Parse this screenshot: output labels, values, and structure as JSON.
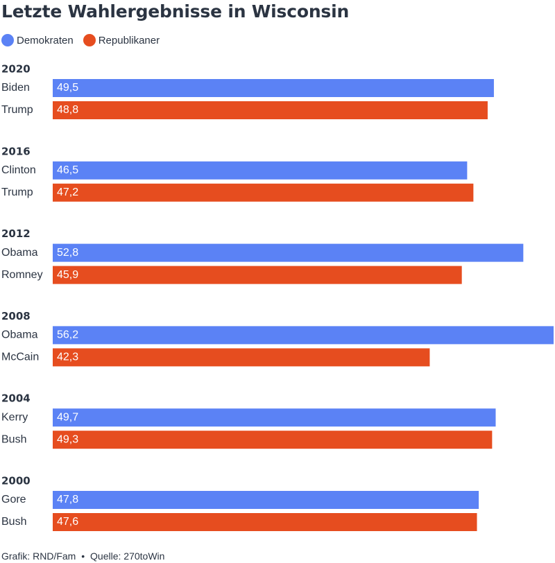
{
  "title": "Letzte Wahlergebnisse in Wisconsin",
  "legend": [
    {
      "label": "Demokraten",
      "color": "#5b82f5"
    },
    {
      "label": "Republikaner",
      "color": "#e64d1f"
    }
  ],
  "footer": {
    "credit": "Grafik: RND/Fam",
    "separator": "•",
    "source": "Quelle: 270toWin"
  },
  "chart_data": {
    "type": "bar",
    "orientation": "horizontal",
    "title": "Letzte Wahlergebnisse in Wisconsin",
    "xlim": [
      0,
      56.2
    ],
    "grid": false,
    "legend_position": "top-left",
    "series_colors": {
      "Demokraten": "#5b82f5",
      "Republikaner": "#e64d1f"
    },
    "groups": [
      {
        "year": "2020",
        "bars": [
          {
            "candidate": "Biden",
            "party": "Demokraten",
            "value": 49.5,
            "label": "49,5"
          },
          {
            "candidate": "Trump",
            "party": "Republikaner",
            "value": 48.8,
            "label": "48,8"
          }
        ]
      },
      {
        "year": "2016",
        "bars": [
          {
            "candidate": "Clinton",
            "party": "Demokraten",
            "value": 46.5,
            "label": "46,5"
          },
          {
            "candidate": "Trump",
            "party": "Republikaner",
            "value": 47.2,
            "label": "47,2"
          }
        ]
      },
      {
        "year": "2012",
        "bars": [
          {
            "candidate": "Obama",
            "party": "Demokraten",
            "value": 52.8,
            "label": "52,8"
          },
          {
            "candidate": "Romney",
            "party": "Republikaner",
            "value": 45.9,
            "label": "45,9"
          }
        ]
      },
      {
        "year": "2008",
        "bars": [
          {
            "candidate": "Obama",
            "party": "Demokraten",
            "value": 56.2,
            "label": "56,2"
          },
          {
            "candidate": "McCain",
            "party": "Republikaner",
            "value": 42.3,
            "label": "42,3"
          }
        ]
      },
      {
        "year": "2004",
        "bars": [
          {
            "candidate": "Kerry",
            "party": "Demokraten",
            "value": 49.7,
            "label": "49,7"
          },
          {
            "candidate": "Bush",
            "party": "Republikaner",
            "value": 49.3,
            "label": "49,3"
          }
        ]
      },
      {
        "year": "2000",
        "bars": [
          {
            "candidate": "Gore",
            "party": "Demokraten",
            "value": 47.8,
            "label": "47,8"
          },
          {
            "candidate": "Bush",
            "party": "Republikaner",
            "value": 47.6,
            "label": "47,6"
          }
        ]
      }
    ]
  }
}
